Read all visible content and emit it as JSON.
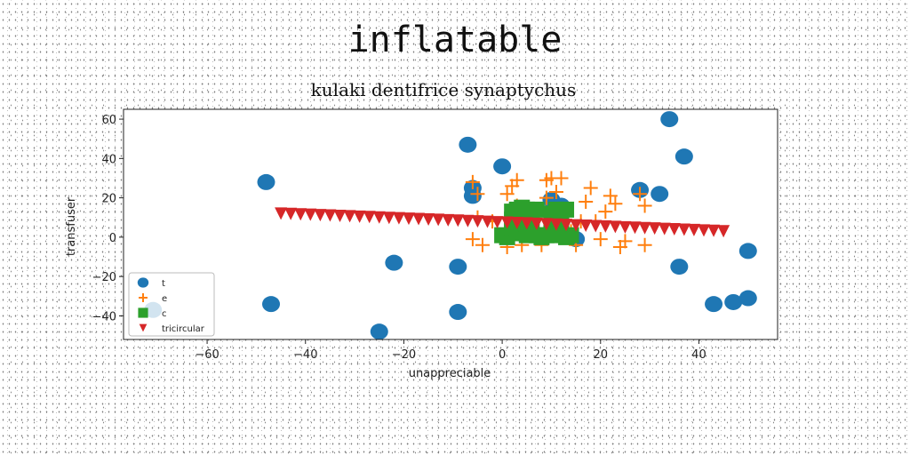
{
  "page_title": "inflatable",
  "chart_data": {
    "type": "scatter",
    "title": "kulaki dentifrice synaptychus",
    "xlabel": "unappreciable",
    "ylabel": "transfuser",
    "xlim": [
      -77,
      56
    ],
    "ylim": [
      -52,
      65
    ],
    "xticks": [
      -60,
      -40,
      -20,
      0,
      20,
      40
    ],
    "yticks": [
      -40,
      -20,
      0,
      20,
      40,
      60
    ],
    "xtick_labels": [
      "−60",
      "−40",
      "−20",
      "0",
      "20",
      "40"
    ],
    "ytick_labels": [
      "−40",
      "−20",
      "0",
      "20",
      "40",
      "60"
    ],
    "legend_position": "lower-left",
    "series": [
      {
        "name": "t",
        "marker": "circle",
        "color": "#1f77b4",
        "x": [
          -48,
          -47,
          -71,
          -22,
          -25,
          -9,
          -9,
          -7,
          -6,
          -6,
          0,
          10,
          12,
          15,
          28,
          32,
          34,
          36,
          37,
          43,
          47,
          50,
          50
        ],
        "y": [
          28,
          -34,
          -37,
          -13,
          -48,
          -15,
          -38,
          47,
          25,
          21,
          36,
          19,
          16,
          -1,
          24,
          22,
          60,
          -15,
          41,
          -34,
          -33,
          -31,
          -7
        ]
      },
      {
        "name": "e",
        "marker": "plus",
        "color": "#ff7f0e",
        "x": [
          -6,
          -5,
          -5,
          -6,
          -4,
          -2,
          1,
          2,
          3,
          3,
          4,
          4,
          5,
          6,
          7,
          8,
          9,
          10,
          11,
          12,
          13,
          14,
          15,
          16,
          17,
          18,
          19,
          20,
          21,
          22,
          23,
          24,
          25,
          28,
          29,
          29,
          3,
          2,
          1,
          9
        ],
        "y": [
          28,
          22,
          10,
          -1,
          -4,
          8,
          22,
          26,
          29,
          16,
          0,
          -4,
          13,
          8,
          2,
          -4,
          29,
          30,
          23,
          30,
          14,
          3,
          -4,
          8,
          18,
          25,
          8,
          -1,
          13,
          21,
          17,
          -5,
          -2,
          22,
          -4,
          16,
          12,
          5,
          -5,
          20
        ]
      },
      {
        "name": "c",
        "marker": "square",
        "color": "#2ca02c",
        "x": [
          0,
          1,
          2,
          2,
          3,
          3,
          4,
          4,
          5,
          5,
          6,
          6,
          7,
          7,
          8,
          9,
          10,
          11,
          11,
          12,
          12,
          13,
          13,
          14,
          2,
          6,
          10
        ],
        "y": [
          1,
          0,
          13,
          5,
          14,
          2,
          15,
          7,
          14,
          1,
          13,
          6,
          14,
          1,
          0,
          1,
          12,
          14,
          1,
          13,
          7,
          14,
          0,
          1,
          9,
          10,
          5
        ]
      },
      {
        "name": "tricircular",
        "marker": "triangle_down",
        "color": "#d62728",
        "x": [
          -45,
          -43,
          -41,
          -39,
          -37,
          -35,
          -33,
          -31,
          -29,
          -27,
          -25,
          -23,
          -21,
          -19,
          -17,
          -15,
          -13,
          -11,
          -9,
          -7,
          -5,
          -3,
          -1,
          1,
          3,
          5,
          7,
          9,
          11,
          13,
          15,
          17,
          19,
          21,
          23,
          25,
          27,
          29,
          31,
          33,
          35,
          37,
          39,
          41,
          43,
          45
        ],
        "y": [
          12,
          11.8,
          11.6,
          11.4,
          11.2,
          11,
          10.8,
          10.6,
          10.4,
          10.2,
          10,
          9.8,
          9.6,
          9.4,
          9.2,
          9,
          8.8,
          8.6,
          8.4,
          8.2,
          8,
          7.8,
          7.6,
          7.4,
          7.2,
          7,
          6.8,
          6.6,
          6.4,
          6.2,
          6,
          5.8,
          5.6,
          5.4,
          5.2,
          5,
          4.8,
          4.6,
          4.4,
          4.2,
          4,
          3.8,
          3.6,
          3.4,
          3.2,
          3
        ]
      }
    ]
  }
}
